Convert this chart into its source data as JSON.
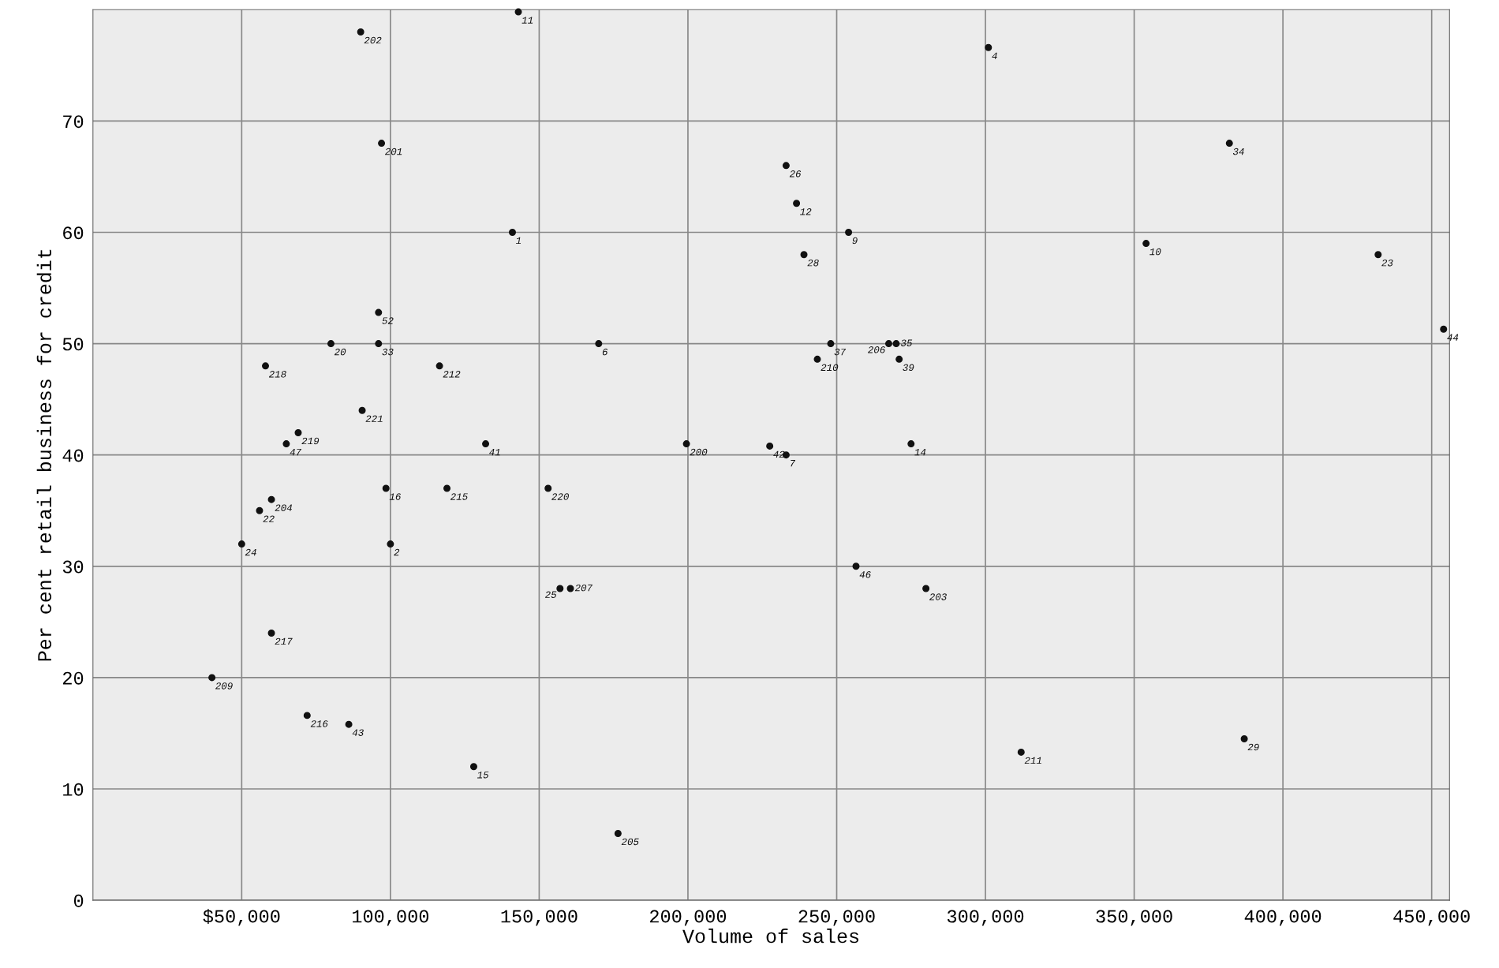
{
  "chart_data": {
    "type": "scatter",
    "xlabel": "Volume of sales",
    "ylabel": "Per cent retail business for credit",
    "xlim": [
      0,
      456000
    ],
    "ylim": [
      0,
      80
    ],
    "xticks": [
      {
        "value": 50000,
        "label": "$50,000"
      },
      {
        "value": 100000,
        "label": "100,000"
      },
      {
        "value": 150000,
        "label": "150,000"
      },
      {
        "value": 200000,
        "label": "200,000"
      },
      {
        "value": 250000,
        "label": "250,000"
      },
      {
        "value": 300000,
        "label": "300,000"
      },
      {
        "value": 350000,
        "label": "350,000"
      },
      {
        "value": 400000,
        "label": "400,000"
      },
      {
        "value": 450000,
        "label": "450,000"
      }
    ],
    "yticks": [
      0,
      10,
      20,
      30,
      40,
      50,
      60,
      70
    ],
    "grid": true,
    "marker": "circle",
    "series": [
      {
        "color": "#111111",
        "x": [
          143000,
          90000,
          301000,
          97000,
          382000,
          233000,
          236500,
          141000,
          254000,
          354000,
          239000,
          432000,
          96000,
          80000,
          96000,
          170000,
          248000,
          267500,
          270000,
          243500,
          271000,
          58000,
          116500,
          90500,
          69000,
          65000,
          132000,
          199500,
          227500,
          233000,
          275000,
          98500,
          119000,
          153000,
          60000,
          56000,
          50000,
          100000,
          256500,
          157000,
          160500,
          280000,
          60000,
          40000,
          72000,
          86000,
          387000,
          312000,
          128000,
          176500,
          454000
        ],
        "values": [
          79.8,
          78,
          76.6,
          68,
          68,
          66,
          62.6,
          60,
          60,
          59,
          58,
          58,
          52.8,
          50,
          50,
          50,
          50,
          50,
          50,
          48.6,
          48.6,
          48,
          48,
          44,
          42,
          41,
          41,
          41,
          40.8,
          40,
          41,
          37,
          37,
          37,
          36,
          35,
          32,
          32,
          30,
          28,
          28,
          28,
          24,
          20,
          16.6,
          15.8,
          14.5,
          13.3,
          12,
          6,
          51.3
        ]
      }
    ],
    "annotations": [
      {
        "text": "11",
        "x": 143000,
        "y": 79.8
      },
      {
        "text": "202",
        "x": 90000,
        "y": 78
      },
      {
        "text": "4",
        "x": 301000,
        "y": 76.6
      },
      {
        "text": "201",
        "x": 97000,
        "y": 68
      },
      {
        "text": "34",
        "x": 382000,
        "y": 68
      },
      {
        "text": "26",
        "x": 233000,
        "y": 66
      },
      {
        "text": "12",
        "x": 236500,
        "y": 62.6
      },
      {
        "text": "1",
        "x": 141000,
        "y": 60
      },
      {
        "text": "9",
        "x": 254000,
        "y": 60
      },
      {
        "text": "10",
        "x": 354000,
        "y": 59
      },
      {
        "text": "28",
        "x": 239000,
        "y": 58
      },
      {
        "text": "23",
        "x": 432000,
        "y": 58
      },
      {
        "text": "52",
        "x": 96000,
        "y": 52.8
      },
      {
        "text": "20",
        "x": 80000,
        "y": 50
      },
      {
        "text": "33",
        "x": 96000,
        "y": 50
      },
      {
        "text": "6",
        "x": 170000,
        "y": 50
      },
      {
        "text": "37",
        "x": 248000,
        "y": 50
      },
      {
        "text": "206",
        "x": 267500,
        "y": 50
      },
      {
        "text": "35",
        "x": 270000,
        "y": 50
      },
      {
        "text": "210",
        "x": 243500,
        "y": 48.6
      },
      {
        "text": "39",
        "x": 271000,
        "y": 48.6
      },
      {
        "text": "218",
        "x": 58000,
        "y": 48
      },
      {
        "text": "212",
        "x": 116500,
        "y": 48
      },
      {
        "text": "221",
        "x": 90500,
        "y": 44
      },
      {
        "text": "219",
        "x": 69000,
        "y": 42
      },
      {
        "text": "47",
        "x": 65000,
        "y": 41
      },
      {
        "text": "41",
        "x": 132000,
        "y": 41
      },
      {
        "text": "200",
        "x": 199500,
        "y": 41
      },
      {
        "text": "42",
        "x": 227500,
        "y": 40.8
      },
      {
        "text": "7",
        "x": 233000,
        "y": 40
      },
      {
        "text": "14",
        "x": 275000,
        "y": 41
      },
      {
        "text": "16",
        "x": 98500,
        "y": 37
      },
      {
        "text": "215",
        "x": 119000,
        "y": 37
      },
      {
        "text": "220",
        "x": 153000,
        "y": 37
      },
      {
        "text": "204",
        "x": 60000,
        "y": 36
      },
      {
        "text": "22",
        "x": 56000,
        "y": 35
      },
      {
        "text": "24",
        "x": 50000,
        "y": 32
      },
      {
        "text": "2",
        "x": 100000,
        "y": 32
      },
      {
        "text": "46",
        "x": 256500,
        "y": 30
      },
      {
        "text": "25",
        "x": 157000,
        "y": 28
      },
      {
        "text": "207",
        "x": 160500,
        "y": 28
      },
      {
        "text": "203",
        "x": 280000,
        "y": 28
      },
      {
        "text": "217",
        "x": 60000,
        "y": 24
      },
      {
        "text": "209",
        "x": 40000,
        "y": 20
      },
      {
        "text": "216",
        "x": 72000,
        "y": 16.6
      },
      {
        "text": "43",
        "x": 86000,
        "y": 15.8
      },
      {
        "text": "29",
        "x": 387000,
        "y": 14.5
      },
      {
        "text": "211",
        "x": 312000,
        "y": 13.3
      },
      {
        "text": "15",
        "x": 128000,
        "y": 12
      },
      {
        "text": "205",
        "x": 176500,
        "y": 6
      },
      {
        "text": "44",
        "x": 454000,
        "y": 51.3
      }
    ]
  }
}
